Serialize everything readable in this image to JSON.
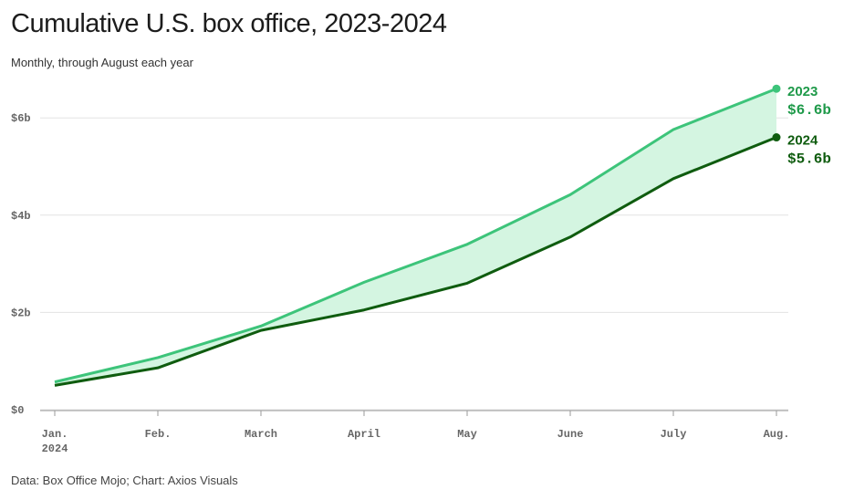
{
  "title": "Cumulative U.S. box office, 2023-2024",
  "subtitle": "Monthly, through August each year",
  "source": "Data: Box Office Mojo; Chart: Axios Visuals",
  "colors": {
    "s2023": "#3dc47a",
    "s2024": "#0f5c0f",
    "fill": "#d4f5e1",
    "grid": "#e3e3e3",
    "label2023": "#1f9a4a",
    "label2024": "#0f5c0f"
  },
  "chart_data": {
    "type": "line",
    "title": "Cumulative U.S. box office, 2023-2024",
    "subtitle": "Monthly, through August each year",
    "categories": [
      "Jan.",
      "Feb.",
      "March",
      "April",
      "May",
      "June",
      "July",
      "Aug."
    ],
    "first_category_sublabel": "2024",
    "y_ticks": [
      0,
      2,
      4,
      6
    ],
    "y_tick_labels": [
      "$0",
      "$2b",
      "$4b",
      "$6b"
    ],
    "ylim": [
      0,
      6.6
    ],
    "grid": true,
    "series": [
      {
        "name": "2023",
        "values": [
          0.57,
          1.07,
          1.72,
          2.62,
          3.4,
          4.42,
          5.76,
          6.6
        ],
        "end_label": "$6.6b"
      },
      {
        "name": "2024",
        "values": [
          0.5,
          0.86,
          1.63,
          2.05,
          2.6,
          3.55,
          4.75,
          5.6
        ],
        "end_label": "$5.6b"
      }
    ],
    "shaded_between_series": true
  }
}
